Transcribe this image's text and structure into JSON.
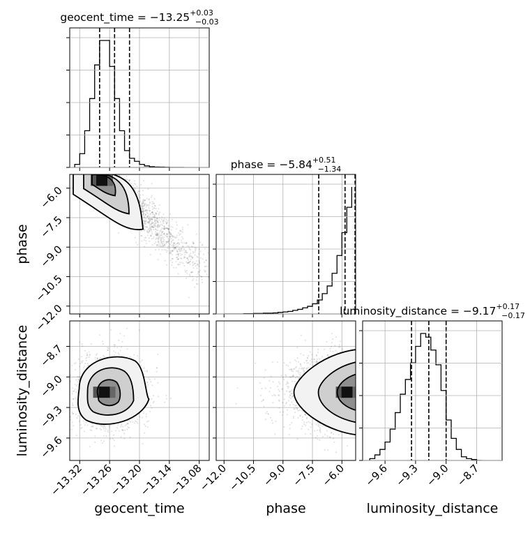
{
  "chart_data": {
    "type": "corner",
    "parameters": [
      "geocent_time",
      "phase",
      "luminosity_distance"
    ],
    "titles": [
      {
        "param": "geocent_time",
        "name": "geocent_time",
        "value": "−13.25",
        "upper": "+0.03",
        "lower": "−0.03"
      },
      {
        "param": "phase",
        "name": "phase",
        "value": "−5.84",
        "upper": "+0.51",
        "lower": "−1.34"
      },
      {
        "param": "luminosity_distance",
        "name": "luminosity_distance",
        "value": "−9.17",
        "upper": "+0.17",
        "lower": "−0.17"
      }
    ],
    "axes": {
      "geocent_time": {
        "range": [
          -13.34,
          -13.06
        ],
        "ticks": [
          -13.32,
          -13.26,
          -13.2,
          -13.14,
          -13.08
        ],
        "tick_labels": [
          "−13.32",
          "−13.26",
          "−13.20",
          "−13.14",
          "−13.08"
        ],
        "quantiles": [
          -13.28,
          -13.25,
          -13.22
        ]
      },
      "phase": {
        "range": [
          -12.4,
          -5.3
        ],
        "ticks": [
          -12.0,
          -10.5,
          -9.0,
          -7.5,
          -6.0
        ],
        "tick_labels": [
          "−12.0",
          "−10.5",
          "−9.0",
          "−7.5",
          "−6.0"
        ],
        "quantiles": [
          -7.18,
          -5.84,
          -5.33
        ]
      },
      "luminosity_distance": {
        "range": [
          -9.82,
          -8.45
        ],
        "ticks": [
          -9.6,
          -9.3,
          -9.0,
          -8.7
        ],
        "tick_labels": [
          "−9.6",
          "−9.3",
          "−9.0",
          "−8.7"
        ],
        "quantiles": [
          -9.34,
          -9.17,
          -9.0
        ]
      }
    },
    "histograms": {
      "geocent_time": {
        "edges": [
          -13.33,
          -13.32,
          -13.31,
          -13.3,
          -13.29,
          -13.28,
          -13.27,
          -13.26,
          -13.25,
          -13.24,
          -13.23,
          -13.22,
          -13.21,
          -13.2,
          -13.19,
          -13.18,
          -13.17,
          -13.16,
          -13.15,
          -13.14,
          -13.13,
          -13.12,
          -13.11
        ],
        "counts": [
          2,
          9,
          24,
          45,
          67,
          83,
          83,
          66,
          45,
          24,
          11,
          6,
          4,
          2,
          1,
          0.5,
          0.3,
          0.2,
          0.1,
          0,
          0,
          0
        ]
      },
      "phase": {
        "edges": [
          -12.0,
          -11.75,
          -11.5,
          -11.25,
          -11.0,
          -10.75,
          -10.5,
          -10.25,
          -10.0,
          -9.75,
          -9.5,
          -9.25,
          -9.0,
          -8.75,
          -8.5,
          -8.25,
          -8.0,
          -7.75,
          -7.5,
          -7.25,
          -7.0,
          -6.75,
          -6.5,
          -6.25,
          -6.0,
          -5.75,
          -5.5
        ],
        "counts": [
          0,
          0,
          0,
          0,
          1,
          1,
          2,
          2,
          3,
          3,
          4,
          6,
          8,
          10,
          14,
          18,
          24,
          30,
          40,
          55,
          80,
          110,
          160,
          230,
          320,
          420,
          500
        ]
      },
      "luminosity_distance": {
        "edges": [
          -9.75,
          -9.7,
          -9.65,
          -9.6,
          -9.55,
          -9.5,
          -9.45,
          -9.4,
          -9.35,
          -9.3,
          -9.25,
          -9.2,
          -9.15,
          -9.1,
          -9.05,
          -9.0,
          -8.95,
          -8.9,
          -8.85,
          -8.8,
          -8.75,
          -8.7,
          -8.65
        ],
        "counts": [
          1,
          3,
          6,
          10,
          17,
          26,
          36,
          44,
          53,
          62,
          69,
          67,
          60,
          52,
          38,
          22,
          12,
          6,
          2,
          1,
          0.5,
          0
        ]
      }
    },
    "joint_peaks": {
      "geocent_time_vs_phase": {
        "x": -13.27,
        "y": -5.6
      },
      "geocent_time_vs_luminosity_distance": {
        "x": -13.265,
        "y": -9.15
      },
      "phase_vs_luminosity_distance": {
        "x": -5.6,
        "y": -9.15
      }
    }
  }
}
